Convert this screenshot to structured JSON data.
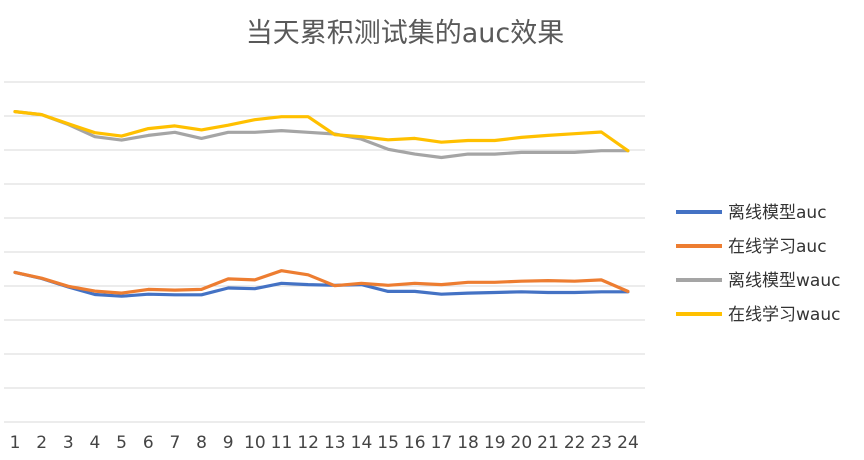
{
  "chart_data": {
    "type": "line",
    "title": "当天累积测试集的auc效果",
    "xlabel": "",
    "ylabel": "",
    "x": [
      1,
      2,
      3,
      4,
      5,
      6,
      7,
      8,
      9,
      10,
      11,
      12,
      13,
      14,
      15,
      16,
      17,
      18,
      19,
      20,
      21,
      22,
      23,
      24
    ],
    "x_tick_labels": [
      "1",
      "2",
      "3",
      "4",
      "5",
      "6",
      "7",
      "8",
      "9",
      "10",
      "11",
      "12",
      "13",
      "14",
      "15",
      "16",
      "17",
      "18",
      "19",
      "20",
      "21",
      "22",
      "23",
      "24"
    ],
    "y_tick_labels_visible": false,
    "grid": "horizontal",
    "legend_position": "right",
    "series": [
      {
        "name": "离线模型auc",
        "color": "#4472C4",
        "values": [
          4.4,
          4.22,
          3.97,
          3.75,
          3.7,
          3.76,
          3.74,
          3.74,
          3.94,
          3.92,
          4.08,
          4.04,
          4.02,
          4.04,
          3.84,
          3.84,
          3.76,
          3.79,
          3.81,
          3.83,
          3.81,
          3.81,
          3.83,
          3.83
        ]
      },
      {
        "name": "在线学习auc",
        "color": "#ED7D31",
        "values": [
          4.4,
          4.23,
          3.99,
          3.85,
          3.79,
          3.9,
          3.88,
          3.9,
          4.21,
          4.18,
          4.45,
          4.33,
          4.01,
          4.08,
          4.02,
          4.08,
          4.04,
          4.11,
          4.11,
          4.14,
          4.16,
          4.14,
          4.18,
          3.84
        ]
      },
      {
        "name": "离线模型wauc",
        "color": "#A5A5A5",
        "values": [
          9.13,
          9.04,
          8.75,
          8.39,
          8.29,
          8.43,
          8.52,
          8.34,
          8.52,
          8.52,
          8.57,
          8.52,
          8.47,
          8.32,
          8.02,
          7.88,
          7.78,
          7.88,
          7.88,
          7.93,
          7.93,
          7.93,
          7.98,
          7.98
        ]
      },
      {
        "name": "在线学习wauc",
        "color": "#FFC000",
        "values": [
          9.13,
          9.04,
          8.77,
          8.51,
          8.41,
          8.63,
          8.71,
          8.59,
          8.73,
          8.89,
          8.98,
          8.98,
          8.45,
          8.39,
          8.3,
          8.34,
          8.23,
          8.28,
          8.28,
          8.37,
          8.43,
          8.48,
          8.53,
          7.98
        ]
      }
    ]
  }
}
